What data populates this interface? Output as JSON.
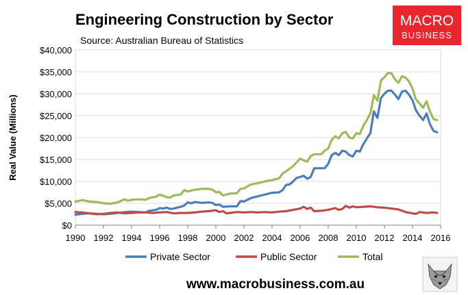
{
  "chart_data": {
    "type": "line",
    "title": "Engineering Construction by Sector",
    "subtitle": "Source: Australian Bureau of Statistics",
    "ylabel": "Real Value (Millions)",
    "xlabel": "",
    "xlim": [
      1990,
      2016
    ],
    "ylim": [
      0,
      40000
    ],
    "yticks": [
      0,
      5000,
      10000,
      15000,
      20000,
      25000,
      30000,
      35000,
      40000
    ],
    "ytick_labels": [
      "$0",
      "$5,000",
      "$10,000",
      "$15,000",
      "$20,000",
      "$25,000",
      "$30,000",
      "$35,000",
      "$40,000"
    ],
    "xticks": [
      1990,
      1992,
      1994,
      1996,
      1998,
      2000,
      2002,
      2004,
      2006,
      2008,
      2010,
      2012,
      2014,
      2016
    ],
    "xtick_labels": [
      "1990",
      "1992",
      "1994",
      "1996",
      "1998",
      "2000",
      "2002",
      "2004",
      "2006",
      "2008",
      "2010",
      "2012",
      "2014",
      "2016"
    ],
    "grid": "horizontal",
    "legend_position": "bottom",
    "series": [
      {
        "name": "Private Sector",
        "color": "#4a7ebb",
        "points": [
          [
            1990,
            2400
          ],
          [
            1990.5,
            2600
          ],
          [
            1991,
            2700
          ],
          [
            1991.5,
            2600
          ],
          [
            1992,
            2500
          ],
          [
            1992.5,
            2600
          ],
          [
            1993,
            2800
          ],
          [
            1993.5,
            3000
          ],
          [
            1994,
            3100
          ],
          [
            1994.5,
            3000
          ],
          [
            1995,
            2900
          ],
          [
            1995.25,
            3300
          ],
          [
            1995.75,
            3500
          ],
          [
            1996,
            3900
          ],
          [
            1996.25,
            3800
          ],
          [
            1996.5,
            4000
          ],
          [
            1996.75,
            3700
          ],
          [
            1997,
            3800
          ],
          [
            1997.5,
            4200
          ],
          [
            1997.75,
            4500
          ],
          [
            1998,
            5200
          ],
          [
            1998.25,
            5000
          ],
          [
            1998.5,
            5300
          ],
          [
            1999,
            5100
          ],
          [
            1999.5,
            5200
          ],
          [
            1999.75,
            5100
          ],
          [
            2000,
            4600
          ],
          [
            2000.25,
            4700
          ],
          [
            2000.5,
            4200
          ],
          [
            2001,
            4300
          ],
          [
            2001.5,
            4300
          ],
          [
            2001.75,
            5500
          ],
          [
            2002,
            5400
          ],
          [
            2002.5,
            6200
          ],
          [
            2003,
            6600
          ],
          [
            2003.5,
            7000
          ],
          [
            2004,
            7400
          ],
          [
            2004.5,
            7500
          ],
          [
            2004.75,
            8000
          ],
          [
            2005,
            9200
          ],
          [
            2005.25,
            9300
          ],
          [
            2005.5,
            10000
          ],
          [
            2005.75,
            10800
          ],
          [
            2006,
            11000
          ],
          [
            2006.25,
            11300
          ],
          [
            2006.5,
            10600
          ],
          [
            2006.75,
            11000
          ],
          [
            2007,
            13000
          ],
          [
            2007.5,
            13000
          ],
          [
            2007.75,
            13000
          ],
          [
            2008,
            14000
          ],
          [
            2008.25,
            16000
          ],
          [
            2008.5,
            16500
          ],
          [
            2008.75,
            16000
          ],
          [
            2009,
            17000
          ],
          [
            2009.25,
            16800
          ],
          [
            2009.5,
            16000
          ],
          [
            2009.75,
            15700
          ],
          [
            2010,
            17000
          ],
          [
            2010.25,
            16800
          ],
          [
            2010.5,
            18500
          ],
          [
            2010.75,
            19800
          ],
          [
            2011,
            21000
          ],
          [
            2011.25,
            26000
          ],
          [
            2011.5,
            24500
          ],
          [
            2011.75,
            29000
          ],
          [
            2012,
            30000
          ],
          [
            2012.25,
            30700
          ],
          [
            2012.5,
            30700
          ],
          [
            2012.75,
            29800
          ],
          [
            2013,
            28800
          ],
          [
            2013.25,
            30500
          ],
          [
            2013.5,
            30700
          ],
          [
            2013.75,
            29800
          ],
          [
            2014,
            28500
          ],
          [
            2014.25,
            26200
          ],
          [
            2014.5,
            25000
          ],
          [
            2014.75,
            24000
          ],
          [
            2015,
            25500
          ],
          [
            2015.25,
            23000
          ],
          [
            2015.5,
            21500
          ],
          [
            2015.75,
            21200
          ]
        ]
      },
      {
        "name": "Public Sector",
        "color": "#be4b48",
        "points": [
          [
            1990,
            3000
          ],
          [
            1990.5,
            2900
          ],
          [
            1991,
            2700
          ],
          [
            1991.5,
            2500
          ],
          [
            1992,
            2600
          ],
          [
            1992.5,
            2800
          ],
          [
            1993,
            2900
          ],
          [
            1993.5,
            2700
          ],
          [
            1994,
            2800
          ],
          [
            1994.5,
            2900
          ],
          [
            1995,
            2900
          ],
          [
            1995.5,
            2800
          ],
          [
            1996,
            2900
          ],
          [
            1996.5,
            3000
          ],
          [
            1997,
            2700
          ],
          [
            1997.5,
            2800
          ],
          [
            1998,
            2800
          ],
          [
            1998.5,
            2900
          ],
          [
            1999,
            3100
          ],
          [
            1999.5,
            3200
          ],
          [
            2000,
            3400
          ],
          [
            2000.25,
            3000
          ],
          [
            2000.5,
            3200
          ],
          [
            2000.75,
            2700
          ],
          [
            2001,
            2800
          ],
          [
            2001.5,
            3000
          ],
          [
            2002,
            2900
          ],
          [
            2002.5,
            3000
          ],
          [
            2003,
            2900
          ],
          [
            2003.5,
            3000
          ],
          [
            2004,
            2900
          ],
          [
            2004.5,
            3100
          ],
          [
            2005,
            3200
          ],
          [
            2005.5,
            3500
          ],
          [
            2006,
            3800
          ],
          [
            2006.25,
            4200
          ],
          [
            2006.5,
            3700
          ],
          [
            2006.75,
            4000
          ],
          [
            2007,
            3200
          ],
          [
            2007.5,
            3300
          ],
          [
            2008,
            3500
          ],
          [
            2008.5,
            3900
          ],
          [
            2008.75,
            3500
          ],
          [
            2009,
            3700
          ],
          [
            2009.25,
            4400
          ],
          [
            2009.5,
            4000
          ],
          [
            2009.75,
            4300
          ],
          [
            2010,
            4100
          ],
          [
            2010.5,
            4200
          ],
          [
            2011,
            4300
          ],
          [
            2011.5,
            4100
          ],
          [
            2012,
            4000
          ],
          [
            2012.5,
            3800
          ],
          [
            2013,
            3600
          ],
          [
            2013.5,
            3000
          ],
          [
            2014,
            2700
          ],
          [
            2014.25,
            2600
          ],
          [
            2014.5,
            3000
          ],
          [
            2015,
            2800
          ],
          [
            2015.5,
            2900
          ],
          [
            2015.75,
            2800
          ]
        ]
      },
      {
        "name": "Total",
        "color": "#9bbb59",
        "points": [
          [
            1990,
            5400
          ],
          [
            1990.5,
            5700
          ],
          [
            1991,
            5400
          ],
          [
            1991.5,
            5300
          ],
          [
            1992,
            5000
          ],
          [
            1992.5,
            4900
          ],
          [
            1993,
            5200
          ],
          [
            1993.5,
            5900
          ],
          [
            1993.75,
            5600
          ],
          [
            1994,
            5800
          ],
          [
            1994.5,
            5900
          ],
          [
            1995,
            5800
          ],
          [
            1995.25,
            6200
          ],
          [
            1995.75,
            6500
          ],
          [
            1996,
            7000
          ],
          [
            1996.5,
            6400
          ],
          [
            1996.75,
            6300
          ],
          [
            1997,
            6800
          ],
          [
            1997.5,
            7000
          ],
          [
            1997.75,
            8000
          ],
          [
            1998,
            7700
          ],
          [
            1998.5,
            8100
          ],
          [
            1999,
            8300
          ],
          [
            1999.5,
            8300
          ],
          [
            1999.75,
            8100
          ],
          [
            2000,
            7500
          ],
          [
            2000.25,
            7600
          ],
          [
            2000.5,
            6800
          ],
          [
            2001,
            7200
          ],
          [
            2001.5,
            7300
          ],
          [
            2001.75,
            8300
          ],
          [
            2002,
            8400
          ],
          [
            2002.5,
            9300
          ],
          [
            2003,
            9600
          ],
          [
            2003.5,
            10000
          ],
          [
            2004,
            10300
          ],
          [
            2004.5,
            10700
          ],
          [
            2004.75,
            11800
          ],
          [
            2005,
            12300
          ],
          [
            2005.5,
            13500
          ],
          [
            2006,
            15200
          ],
          [
            2006.25,
            14800
          ],
          [
            2006.5,
            14500
          ],
          [
            2006.75,
            15800
          ],
          [
            2007,
            16200
          ],
          [
            2007.5,
            16200
          ],
          [
            2007.75,
            17000
          ],
          [
            2008,
            17500
          ],
          [
            2008.25,
            19500
          ],
          [
            2008.5,
            20300
          ],
          [
            2008.75,
            19800
          ],
          [
            2009,
            21000
          ],
          [
            2009.25,
            21300
          ],
          [
            2009.5,
            20000
          ],
          [
            2009.75,
            19800
          ],
          [
            2010,
            21000
          ],
          [
            2010.25,
            20800
          ],
          [
            2010.5,
            22700
          ],
          [
            2010.75,
            24000
          ],
          [
            2011,
            25500
          ],
          [
            2011.25,
            29700
          ],
          [
            2011.5,
            28400
          ],
          [
            2011.75,
            33000
          ],
          [
            2012,
            33800
          ],
          [
            2012.25,
            34700
          ],
          [
            2012.5,
            34700
          ],
          [
            2012.75,
            33300
          ],
          [
            2013,
            32500
          ],
          [
            2013.25,
            34000
          ],
          [
            2013.5,
            33700
          ],
          [
            2013.75,
            32800
          ],
          [
            2014,
            31200
          ],
          [
            2014.25,
            28700
          ],
          [
            2014.5,
            27800
          ],
          [
            2014.75,
            26800
          ],
          [
            2015,
            28300
          ],
          [
            2015.25,
            25900
          ],
          [
            2015.5,
            24200
          ],
          [
            2015.75,
            24000
          ]
        ]
      }
    ]
  },
  "logo": {
    "line1": "MACRO",
    "line2": "BUSINESS",
    "bg_color": "#e8262e"
  },
  "footer": {
    "url": "www.macrobusiness.com.au"
  }
}
